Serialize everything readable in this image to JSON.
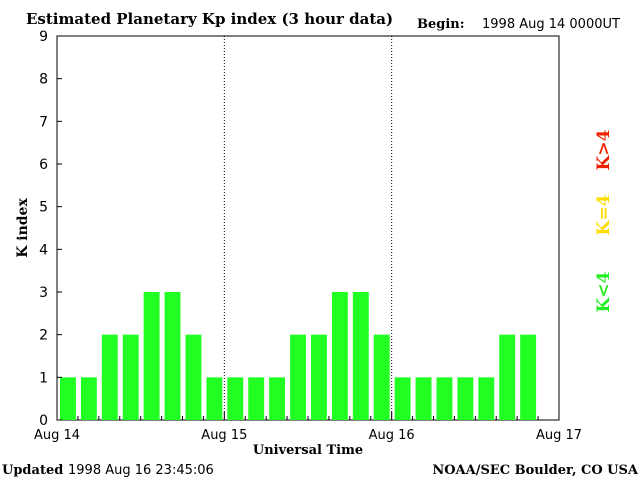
{
  "chart_data": {
    "type": "bar",
    "title": "Estimated Planetary Kp index (3 hour data)",
    "begin_label": "Begin:",
    "begin_value": "1998 Aug 14 0000UT",
    "xlabel": "Universal Time",
    "ylabel": "K index",
    "ylim": [
      0,
      9
    ],
    "yticks": [
      "0",
      "1",
      "2",
      "3",
      "4",
      "5",
      "6",
      "7",
      "8",
      "9"
    ],
    "xticks": [
      "Aug 14",
      "Aug 15",
      "Aug 16",
      "Aug 17"
    ],
    "bins_per_day": 8,
    "days": 3,
    "values": [
      1,
      1,
      2,
      2,
      3,
      3,
      2,
      1,
      1,
      1,
      1,
      2,
      2,
      3,
      3,
      2,
      1,
      1,
      1,
      1,
      1,
      2,
      2
    ],
    "legend": [
      {
        "label": "K<4",
        "color": "#22ee22"
      },
      {
        "label": "K=4",
        "color": "#ffdd00"
      },
      {
        "label": "K>4",
        "color": "#ee2200"
      }
    ],
    "bar_color": "#22ff22",
    "grid": "vertical day separators (dotted)"
  },
  "footer": {
    "updated_label": "Updated",
    "updated_value": "1998 Aug 16 23:45:06",
    "source": "NOAA/SEC Boulder, CO USA"
  }
}
